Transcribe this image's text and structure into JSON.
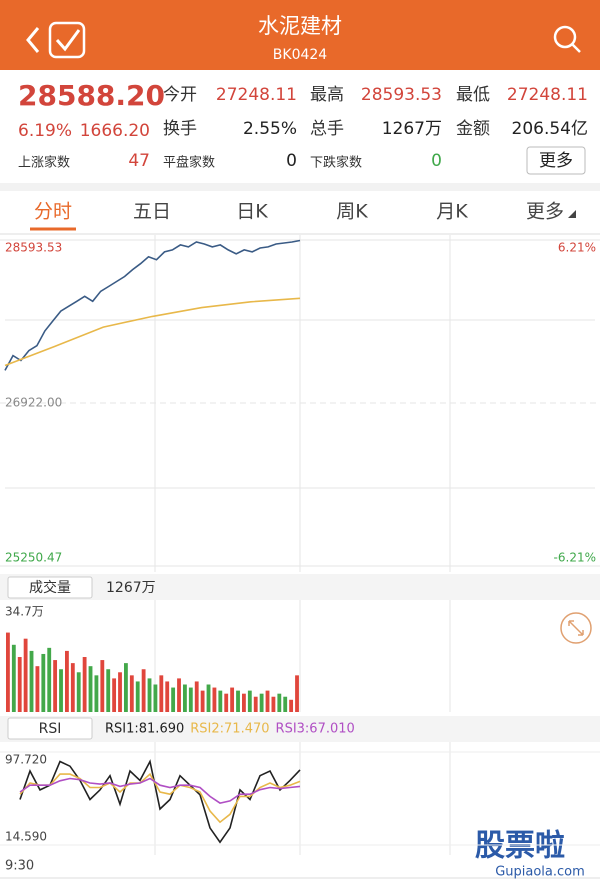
{
  "header": {
    "title": "水泥建材",
    "code": "BK0424"
  },
  "quote": {
    "price": "28588.20",
    "change_pct": "6.19%",
    "change": "1666.20",
    "fields": [
      {
        "label": "今开",
        "value": "27248.11"
      },
      {
        "label": "最高",
        "value": "28593.53"
      },
      {
        "label": "最低",
        "value": "27248.11"
      },
      {
        "label": "换手",
        "value": "2.55%"
      },
      {
        "label": "总手",
        "value": "1267万"
      },
      {
        "label": "金额",
        "value": "206.54亿"
      }
    ],
    "stats": [
      {
        "label": "上涨家数",
        "value": "47"
      },
      {
        "label": "平盘家数",
        "value": "0"
      },
      {
        "label": "下跌家数",
        "value": "0"
      }
    ],
    "more_button": "更多"
  },
  "tabs": [
    "分时",
    "五日",
    "日K",
    "周K",
    "月K",
    "更多"
  ],
  "chart_data": [
    {
      "type": "line",
      "series": [
        {
          "color": "#3a5b85",
          "values": [
            27256,
            27408,
            27358,
            27459,
            27510,
            27661,
            27763,
            27864,
            27915,
            27965,
            28016,
            27965,
            28067,
            28117,
            28168,
            28219,
            28290,
            28350,
            28421,
            28391,
            28472,
            28492,
            28543,
            28523,
            28573,
            28553,
            28523,
            28543,
            28492,
            28452,
            28492,
            28472,
            28512,
            28523,
            28553,
            28563,
            28573,
            28588.2
          ]
        },
        {
          "color": "#e8b84a",
          "values": [
            27307,
            27500,
            27700,
            27810,
            27900,
            27960,
            27996
          ]
        }
      ],
      "ylim": [
        25250.47,
        28593.53
      ],
      "yticks": [
        28593.53,
        {
          "value": 26922,
          "label": "26922.00"
        },
        25250.47
      ],
      "ytick_colors": [
        "#d2453b",
        "#888888",
        "#3fa84a"
      ],
      "y2lim": [
        -6.21,
        6.21
      ],
      "y2ticks": [
        {
          "value": 6.21,
          "label": "6.21%"
        },
        {
          "value": -6.21,
          "label": "-6.21%"
        }
      ],
      "y2tick_colors": [
        "#d2453b",
        "#3fa84a"
      ]
    },
    {
      "type": "bar",
      "title": "成交量",
      "subtitle": "1267万",
      "values": [
        26,
        22,
        18,
        24,
        20,
        15,
        19,
        21,
        17,
        14,
        20,
        16,
        13,
        18,
        15,
        12,
        17,
        14,
        11,
        13,
        16,
        12,
        10,
        14,
        11,
        9,
        12,
        10,
        8,
        11,
        9,
        8,
        10,
        7,
        9,
        8,
        7,
        6,
        8,
        7,
        6,
        7,
        5,
        6,
        7,
        5,
        6,
        5,
        4,
        12
      ],
      "colors": [
        "#e0463c",
        "#43a84a",
        "#e0463c",
        "#e0463c",
        "#43a84a",
        "#e0463c",
        "#43a84a",
        "#43a84a",
        "#e0463c",
        "#43a84a",
        "#e0463c",
        "#e0463c",
        "#43a84a",
        "#e0463c",
        "#43a84a",
        "#43a84a",
        "#e0463c",
        "#43a84a",
        "#e0463c",
        "#e0463c",
        "#43a84a",
        "#e0463c",
        "#43a84a",
        "#e0463c",
        "#43a84a",
        "#43a84a",
        "#e0463c",
        "#e0463c",
        "#43a84a",
        "#e0463c",
        "#43a84a",
        "#43a84a",
        "#e0463c",
        "#e0463c",
        "#43a84a",
        "#e0463c",
        "#43a84a",
        "#e0463c",
        "#e0463c",
        "#43a84a",
        "#e0463c",
        "#43a84a",
        "#e0463c",
        "#43a84a",
        "#e0463c",
        "#e0463c",
        "#43a84a",
        "#43a84a",
        "#e0463c",
        "#e0463c"
      ],
      "ylim": [
        0,
        34.7
      ],
      "yticks": [
        {
          "value": 34.7,
          "label": "34.7万"
        }
      ]
    },
    {
      "type": "line",
      "title": "RSI",
      "series": [
        {
          "name": "RSI1:81.690",
          "color": "#222222",
          "values": [
            55.3,
            80.7,
            63.8,
            68.0,
            89.2,
            85.0,
            72.3,
            55.3,
            63.8,
            76.5,
            51.1,
            80.7,
            72.3,
            89.2,
            46.8,
            55.3,
            76.5,
            68.0,
            59.5,
            29.9,
            17.1,
            29.9,
            63.8,
            55.3,
            76.5,
            80.7,
            63.8,
            72.3,
            81.69
          ]
        },
        {
          "name": "RSI2:71.470",
          "color": "#e8b84a",
          "values": [
            60,
            70,
            68,
            68,
            78,
            78,
            74,
            66,
            66,
            70,
            62,
            70,
            70,
            78,
            62,
            60,
            68,
            66,
            62,
            45,
            35,
            42,
            58,
            58,
            66,
            70,
            66,
            68,
            71.47
          ]
        },
        {
          "name": "RSI3:67.010",
          "color": "#b04fc4",
          "values": [
            62,
            68,
            68,
            68,
            72,
            74,
            73,
            70,
            69,
            70,
            67,
            69,
            70,
            74,
            68,
            66,
            68,
            68,
            66,
            58,
            52,
            54,
            60,
            60,
            64,
            66,
            65,
            66,
            67.01
          ]
        }
      ],
      "ylim": [
        14.59,
        97.72
      ],
      "yticks": [
        {
          "value": 97.72,
          "label": "97.720"
        },
        {
          "value": 14.59,
          "label": "14.590"
        }
      ],
      "x_start_label": "9:30"
    }
  ],
  "watermark": {
    "text": "股票啦",
    "url": "Gupiaola.com"
  }
}
